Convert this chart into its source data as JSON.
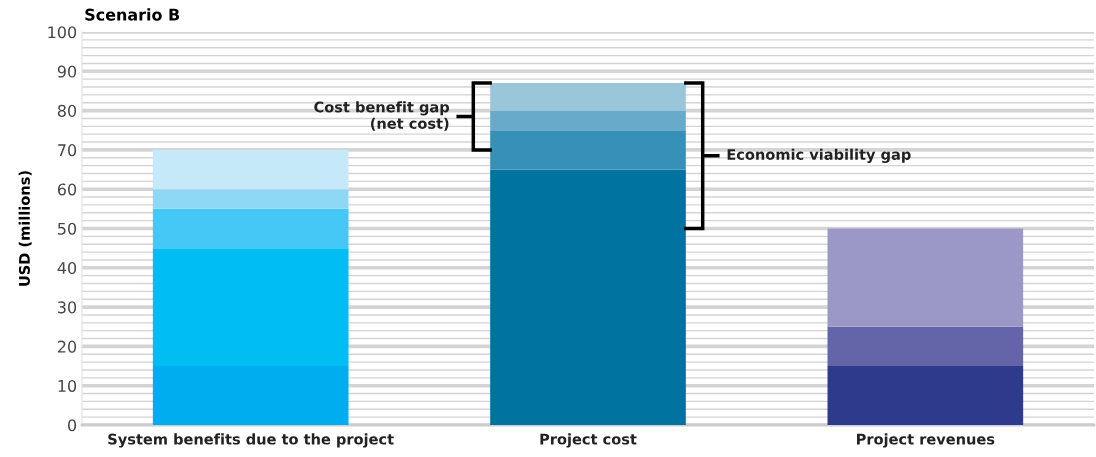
{
  "chart_data": {
    "type": "bar",
    "stacked": true,
    "title": "Scenario B",
    "ylabel": "USD (millions)",
    "categories": [
      "System benefits due to the project",
      "Project cost",
      "Project revenues"
    ],
    "series": [
      {
        "colors": [
          "#00aeef",
          "#0073a1",
          "#2e3a8c"
        ],
        "values": [
          15,
          65,
          15
        ]
      },
      {
        "colors": [
          "#00bdf2",
          "#3690b8",
          "#6464a8"
        ],
        "values": [
          30,
          10,
          10
        ]
      },
      {
        "colors": [
          "#45c8f5",
          "#67aac9",
          "#9b98c8"
        ],
        "values": [
          10,
          5,
          25
        ]
      },
      {
        "colors": [
          "#8fd8f5",
          "#9ac6da",
          null
        ],
        "values": [
          5,
          7,
          null
        ]
      },
      {
        "colors": [
          "#c6e9fa",
          null,
          null
        ],
        "values": [
          10,
          null,
          null
        ]
      }
    ],
    "ylim": [
      0,
      100
    ],
    "yticks": [
      0,
      {
        "value": 2,
        "label": null
      },
      {
        "value": 4,
        "label": null
      },
      {
        "value": 6,
        "label": null
      },
      {
        "value": 8,
        "label": null
      },
      10,
      {
        "value": 12,
        "label": null
      },
      {
        "value": 14,
        "label": null
      },
      {
        "value": 16,
        "label": null
      },
      {
        "value": 18,
        "label": null
      },
      20,
      {
        "value": 22,
        "label": null
      },
      {
        "value": 24,
        "label": null
      },
      {
        "value": 26,
        "label": null
      },
      {
        "value": 28,
        "label": null
      },
      30,
      {
        "value": 32,
        "label": null
      },
      {
        "value": 34,
        "label": null
      },
      {
        "value": 36,
        "label": null
      },
      {
        "value": 38,
        "label": null
      },
      40,
      {
        "value": 42,
        "label": null
      },
      {
        "value": 44,
        "label": null
      },
      {
        "value": 46,
        "label": null
      },
      {
        "value": 48,
        "label": null
      },
      50,
      {
        "value": 52,
        "label": null
      },
      {
        "value": 54,
        "label": null
      },
      {
        "value": 56,
        "label": null
      },
      {
        "value": 58,
        "label": null
      },
      60,
      {
        "value": 62,
        "label": null
      },
      {
        "value": 64,
        "label": null
      },
      {
        "value": 66,
        "label": null
      },
      {
        "value": 68,
        "label": null
      },
      70,
      {
        "value": 72,
        "label": null
      },
      {
        "value": 74,
        "label": null
      },
      {
        "value": 76,
        "label": null
      },
      {
        "value": 78,
        "label": null
      },
      80,
      {
        "value": 82,
        "label": null
      },
      {
        "value": 84,
        "label": null
      },
      {
        "value": 86,
        "label": null
      },
      {
        "value": 88,
        "label": null
      },
      90,
      {
        "value": 92,
        "label": null
      },
      {
        "value": 94,
        "label": null
      },
      {
        "value": 96,
        "label": null
      },
      {
        "value": 98,
        "label": null
      },
      100
    ],
    "grid": "y",
    "annotations": [
      "Cost benefit gap\n(net cost)",
      "Economic viability gap"
    ]
  }
}
